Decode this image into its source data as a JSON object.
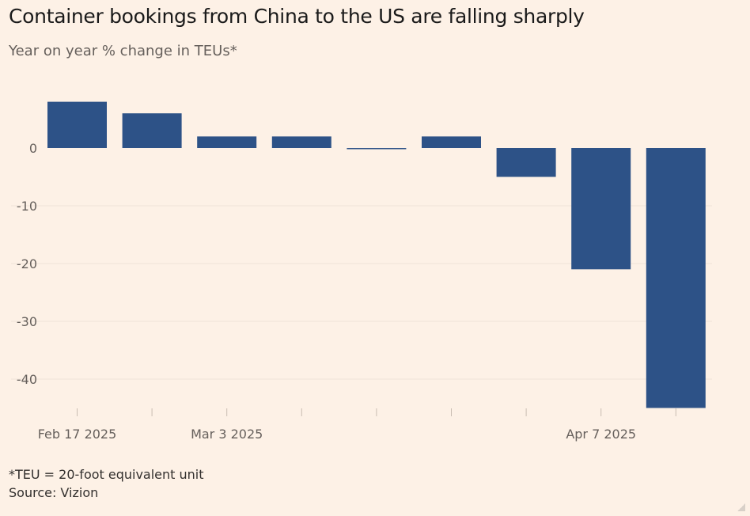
{
  "title": "Container bookings from China to the US are falling sharply",
  "subtitle": "Year on year % change in TEUs*",
  "footnote": "*TEU = 20-foot equivalent unit",
  "source": "Source: Vizion",
  "colors": {
    "bar": "#2d5287",
    "background": "#fdf1e6",
    "grid": "#efe3d8",
    "text": "#66605c"
  },
  "chart_data": {
    "type": "bar",
    "title": "Container bookings from China to the US are falling sharply",
    "ylabel": "Year on year % change in TEUs*",
    "categories": [
      "Feb 17 2025",
      "",
      "Mar 3 2025",
      "",
      "",
      "",
      "",
      "Apr 7 2025",
      ""
    ],
    "values": [
      8,
      6,
      2,
      2,
      -0.2,
      2,
      -5,
      -21,
      -45
    ],
    "x_tick_labels": [
      "Feb 17 2025",
      "Mar 3 2025",
      "Apr 7 2025"
    ],
    "y_ticks": [
      0,
      -10,
      -20,
      -30,
      -40
    ],
    "ylim": [
      -45,
      9
    ],
    "grid": true,
    "legend": "none"
  }
}
